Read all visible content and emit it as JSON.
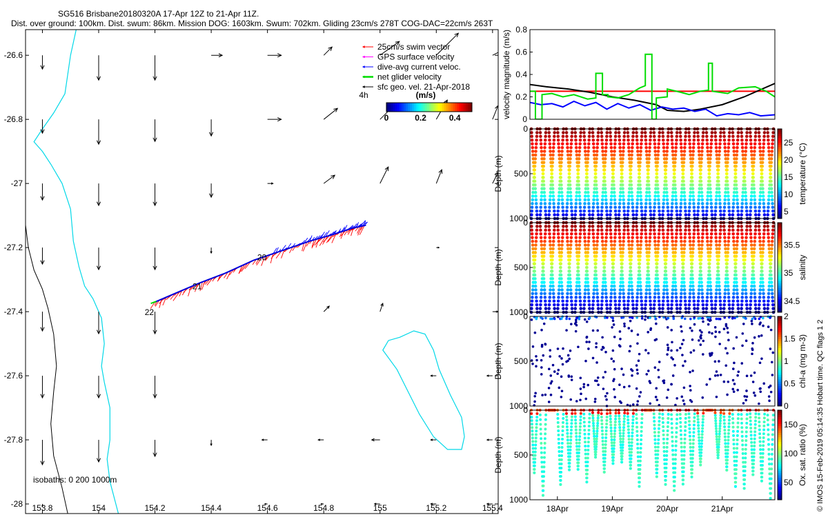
{
  "header": {
    "line1": "SG516 Brisbane20180320A 17-Apr 12Z to 21-Apr 11Z.",
    "line2": "Dist. over ground: 100km. Dist. swum: 86km. Mission DOG: 1603km. Swum: 702km. Gliding 23cm/s 278T COG-DAC=22cm/s 263T"
  },
  "footer": {
    "credit": "© IMOS 15-Feb-2019 05:14:35 Hobart time. QC flags 1  2"
  },
  "colors": {
    "coastline": "#00d8e8",
    "isobath": "#000000",
    "swim": "#ff0000",
    "gps": "#ff00ff",
    "dac": "#0000ff",
    "net": "#00dd00",
    "sfc": "#000000",
    "track": "#0000dd"
  },
  "chart_data": [
    {
      "type": "map",
      "id": "glider-map",
      "xlim": [
        153.74,
        155.42
      ],
      "ylim": [
        -28.03,
        -26.52
      ],
      "xticks": [
        "153.8",
        "154",
        "154.2",
        "154.4",
        "154.6",
        "154.8",
        "155",
        "155.2",
        "155.4"
      ],
      "yticks": [
        "-26.6",
        "-26.8",
        "-27",
        "-27.2",
        "-27.4",
        "-27.6",
        "-27.8",
        "-28"
      ],
      "isobath_label": "isobaths: 0   200  1000m",
      "legend": [
        {
          "label": "25cm/s swim vector",
          "color": "#ff0000"
        },
        {
          "label": "GPS surface velocity",
          "color": "#ff00ff"
        },
        {
          "label": "dive-avg current veloc.",
          "color": "#0000ff"
        },
        {
          "label": "net glider velocity",
          "color": "#00dd00"
        },
        {
          "label": "sfc geo. vel. 21-Apr-2018",
          "color": "#000000"
        }
      ],
      "colorbar": {
        "ticks": [
          "0",
          "0.2",
          "0.4"
        ],
        "label": "(m/s)",
        "range": [
          0,
          0.5
        ],
        "note": "4h"
      },
      "track": {
        "lon": [
          154.2,
          154.28,
          154.36,
          154.45,
          154.55,
          154.65,
          154.75,
          154.83,
          154.9,
          154.95
        ],
        "lat": [
          -27.37,
          -27.34,
          -27.31,
          -27.28,
          -27.24,
          -27.21,
          -27.18,
          -27.16,
          -27.14,
          -27.13
        ]
      },
      "day_labels": [
        {
          "text": "22",
          "lon": 154.18,
          "lat": -27.41
        },
        {
          "text": "21",
          "lon": 154.35,
          "lat": -27.33
        },
        {
          "text": "20",
          "lon": 154.58,
          "lat": -27.24
        }
      ],
      "geostrophic_vectors": {
        "lons": [
          153.8,
          154.0,
          154.2,
          154.4,
          154.6,
          154.8,
          155.0,
          155.2,
          155.4
        ],
        "lats": [
          -26.6,
          -26.8,
          -27.0,
          -27.2,
          -27.4,
          -27.6,
          -27.8,
          -28.0
        ],
        "u": [
          [
            0.0,
            0.0,
            0.0,
            0.04,
            0.05,
            0.03,
            0.07,
            0.08,
            0.04
          ],
          [
            0.0,
            0.0,
            0.0,
            0.0,
            0.05,
            0.05,
            0.05,
            0.04,
            0.02
          ],
          [
            0.0,
            0.0,
            0.0,
            0.0,
            0.02,
            0.04,
            0.03,
            0.02,
            0.02
          ],
          [
            0.0,
            0.0,
            0.0,
            0.0,
            0.0,
            0.0,
            0.0,
            0.01,
            0.0
          ],
          [
            0.0,
            0.0,
            0.0,
            0.0,
            0.0,
            0.02,
            0.01,
            0.0,
            0.02
          ],
          [
            0.0,
            0.0,
            0.0,
            0.0,
            0.0,
            0.0,
            0.0,
            -0.02,
            -0.02
          ],
          [
            0.0,
            0.0,
            0.0,
            0.0,
            -0.02,
            -0.02,
            -0.03,
            -0.02,
            -0.02
          ],
          [
            0.0,
            0.0,
            0.0,
            0.0,
            -0.01,
            -0.01,
            -0.02,
            -0.02,
            -0.02
          ]
        ],
        "v": [
          [
            -0.05,
            -0.09,
            -0.09,
            0.0,
            0.0,
            0.03,
            0.05,
            0.08,
            0.02
          ],
          [
            -0.05,
            -0.09,
            -0.08,
            -0.06,
            0.0,
            0.04,
            0.05,
            0.07,
            0.05
          ],
          [
            -0.06,
            -0.08,
            -0.08,
            -0.05,
            0.0,
            0.03,
            0.06,
            0.05,
            0.04
          ],
          [
            -0.06,
            -0.08,
            -0.08,
            -0.02,
            0.0,
            0.0,
            0.0,
            0.0,
            0.0
          ],
          [
            -0.07,
            -0.08,
            -0.08,
            0.0,
            0.0,
            0.02,
            0.03,
            0.0,
            0.0
          ],
          [
            -0.08,
            -0.08,
            -0.08,
            0.0,
            0.0,
            0.0,
            0.0,
            0.0,
            0.0
          ],
          [
            -0.09,
            -0.08,
            -0.06,
            -0.02,
            0.0,
            0.0,
            0.0,
            0.0,
            0.0
          ],
          [
            -0.01,
            0.0,
            0.0,
            0.0,
            0.0,
            0.0,
            0.0,
            0.0,
            0.0
          ]
        ]
      }
    },
    {
      "type": "line",
      "id": "velocity-panel",
      "ylabel": "velocity magnitude (m/s)",
      "ylim": [
        0,
        0.8
      ],
      "yticks": [
        "0",
        "0.2",
        "0.4",
        "0.6",
        "0.8"
      ],
      "xlim": [
        17.5,
        21.958
      ],
      "series": [
        {
          "name": "25cm/s swim vector",
          "color": "#ff0000",
          "x": [
            17.5,
            21.958
          ],
          "y": [
            0.25,
            0.25
          ]
        },
        {
          "name": "sfc geo. velocity",
          "color": "#000000",
          "x": [
            17.5,
            17.8,
            18.2,
            18.6,
            19.0,
            19.4,
            19.8,
            20.0,
            20.3,
            20.6,
            21.0,
            21.4,
            21.958
          ],
          "y": [
            0.31,
            0.29,
            0.27,
            0.24,
            0.2,
            0.17,
            0.13,
            0.08,
            0.07,
            0.09,
            0.13,
            0.2,
            0.32
          ]
        },
        {
          "name": "dive-avg current veloc.",
          "color": "#0000ff",
          "x": [
            17.5,
            17.7,
            17.9,
            18.1,
            18.3,
            18.5,
            18.7,
            18.9,
            19.1,
            19.3,
            19.5,
            19.7,
            19.9,
            20.1,
            20.3,
            20.5,
            20.7,
            20.9,
            21.1,
            21.3,
            21.5,
            21.7,
            21.958
          ],
          "y": [
            0.15,
            0.13,
            0.14,
            0.11,
            0.16,
            0.12,
            0.15,
            0.09,
            0.14,
            0.1,
            0.13,
            0.08,
            0.11,
            0.09,
            0.1,
            0.07,
            0.09,
            0.03,
            0.05,
            0.04,
            0.06,
            0.03,
            0.04
          ]
        },
        {
          "name": "net glider velocity",
          "color": "#00dd00",
          "x": [
            17.5,
            17.6,
            17.6,
            17.72,
            17.72,
            17.9,
            18.1,
            18.3,
            18.55,
            18.7,
            18.7,
            18.82,
            18.82,
            18.92,
            18.92,
            19.1,
            19.3,
            19.5,
            19.6,
            19.6,
            19.72,
            19.72,
            19.8,
            19.8,
            20.0,
            20.0,
            20.25,
            20.4,
            20.6,
            20.75,
            20.75,
            20.82,
            20.82,
            21.1,
            21.3,
            21.6,
            21.8,
            21.958
          ],
          "y": [
            0.25,
            0.25,
            0.0,
            0.0,
            0.22,
            0.23,
            0.2,
            0.22,
            0.18,
            0.19,
            0.41,
            0.41,
            0.22,
            0.22,
            0.2,
            0.19,
            0.22,
            0.28,
            0.3,
            0.58,
            0.58,
            0.0,
            0.0,
            0.19,
            0.2,
            0.27,
            0.24,
            0.22,
            0.25,
            0.26,
            0.5,
            0.5,
            0.25,
            0.23,
            0.28,
            0.29,
            0.25,
            0.2
          ]
        }
      ]
    },
    {
      "type": "scatter",
      "id": "temperature-panel",
      "ylabel": "Depth (m)",
      "colorbar_label": "temperature (°C)",
      "colorbar_ticks": [
        "5",
        "10",
        "15",
        "20",
        "25"
      ],
      "crange": [
        3,
        29
      ],
      "ylim": [
        0,
        1000
      ],
      "yticks": [
        "0",
        "500",
        "1000"
      ],
      "dives": 28,
      "max_depth": 1000
    },
    {
      "type": "scatter",
      "id": "salinity-panel",
      "ylabel": "Depth (m)",
      "colorbar_label": "salinity",
      "colorbar_ticks": [
        "34.5",
        "35",
        "35.5"
      ],
      "crange": [
        34.3,
        35.9
      ],
      "ylim": [
        0,
        1000
      ],
      "yticks": [
        "0",
        "500",
        "1000"
      ],
      "dives": 28,
      "max_depth": 1000
    },
    {
      "type": "scatter",
      "id": "chl-panel",
      "ylabel": "Depth (m)",
      "colorbar_label": "chl-a (mg m-3)",
      "colorbar_ticks": [
        "0",
        "0.5",
        "1",
        "1.5",
        "2"
      ],
      "crange": [
        0,
        2
      ],
      "ylim": [
        0,
        1000
      ],
      "yticks": [
        "0",
        "500",
        "1000"
      ],
      "dives": 28,
      "max_depth": 1000
    },
    {
      "type": "scatter",
      "id": "oxygen-panel",
      "ylabel": "Depth (m)",
      "colorbar_label": "Ox. sat. ratio (%)",
      "colorbar_ticks": [
        "50",
        "100",
        "150"
      ],
      "crange": [
        20,
        175
      ],
      "ylim": [
        0,
        1000
      ],
      "yticks": [
        "0",
        "500",
        "1000"
      ],
      "xticks": [
        "18Apr",
        "19Apr",
        "20Apr",
        "21Apr"
      ],
      "dives": 28,
      "max_depth": 1000
    }
  ]
}
